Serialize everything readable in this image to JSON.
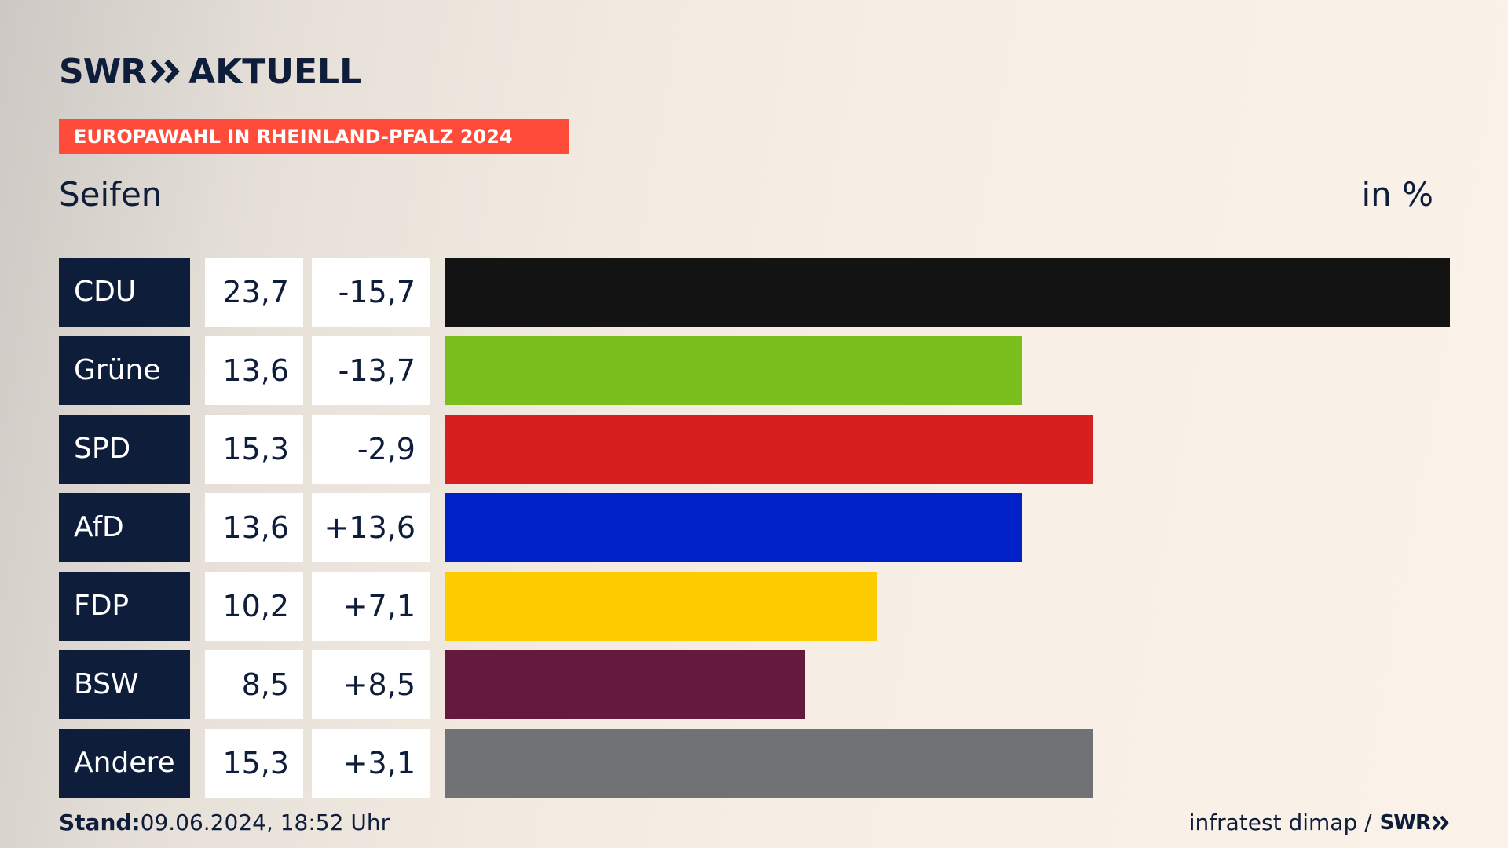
{
  "brand": {
    "name_left": "SWR",
    "name_right": "AKTUELL",
    "color": "#0e1d3a"
  },
  "banner": {
    "label": "EUROPAWAHL IN RHEINLAND-PFALZ 2024",
    "color": "#ff4b3a"
  },
  "header": {
    "location": "Seifen",
    "unit": "in %"
  },
  "footer": {
    "stand_label": "Stand:",
    "stand_value": "09.06.2024, 18:52 Uhr",
    "source": "infratest dimap /",
    "source_brand": "SWR"
  },
  "chart_data": {
    "type": "bar",
    "orientation": "horizontal",
    "unit": "in %",
    "categories": [
      "CDU",
      "Grüne",
      "SPD",
      "AfD",
      "FDP",
      "BSW",
      "Andere"
    ],
    "values": [
      23.7,
      13.6,
      15.3,
      13.6,
      10.2,
      8.5,
      15.3
    ],
    "value_labels": [
      "23,7",
      "13,6",
      "15,3",
      "13,6",
      "10,2",
      "8,5",
      "15,3"
    ],
    "diff_values": [
      -15.7,
      -13.7,
      -2.9,
      13.6,
      7.1,
      8.5,
      3.1
    ],
    "diff_labels": [
      "-15,7",
      "-13,7",
      "-2,9",
      "+13,6",
      "+7,1",
      "+8,5",
      "+3,1"
    ],
    "colors": [
      "#131313",
      "#7abf1e",
      "#d71f1f",
      "#0020c8",
      "#ffcc00",
      "#641a3e",
      "#717274"
    ],
    "xlim": [
      0,
      23.7
    ],
    "grid": false
  }
}
